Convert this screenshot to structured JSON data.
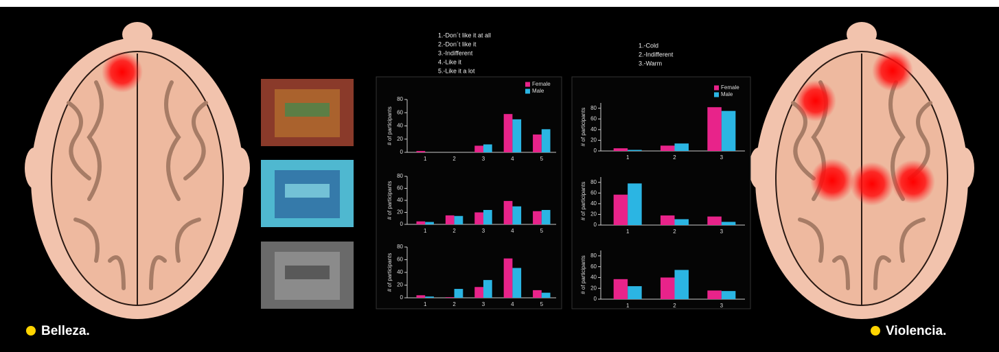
{
  "chart_data": [
    {
      "type": "bar",
      "ylabel": "# of participants",
      "categories": [
        "1",
        "2",
        "3",
        "4",
        "5"
      ],
      "series": [
        {
          "name": "Female",
          "color": "#e8238a",
          "values": [
            2,
            0,
            10,
            58,
            27
          ]
        },
        {
          "name": "Male",
          "color": "#2bb5e3",
          "values": [
            0,
            0,
            12,
            50,
            35
          ]
        }
      ],
      "ylim": [
        0,
        80
      ],
      "yticks": [
        0,
        20,
        40,
        60,
        80
      ],
      "legend": "upper right"
    },
    {
      "type": "bar",
      "ylabel": "# of participants",
      "categories": [
        "1",
        "2",
        "3",
        "4",
        "5"
      ],
      "series": [
        {
          "name": "Female",
          "color": "#e8238a",
          "values": [
            5,
            15,
            20,
            39,
            22
          ]
        },
        {
          "name": "Male",
          "color": "#2bb5e3",
          "values": [
            4,
            14,
            24,
            30,
            24
          ]
        }
      ],
      "ylim": [
        0,
        80
      ],
      "yticks": [
        0,
        20,
        40,
        60,
        80
      ]
    },
    {
      "type": "bar",
      "ylabel": "# of participants",
      "categories": [
        "1",
        "2",
        "3",
        "4",
        "5"
      ],
      "series": [
        {
          "name": "Female",
          "color": "#e8238a",
          "values": [
            4,
            1,
            17,
            62,
            12
          ]
        },
        {
          "name": "Male",
          "color": "#2bb5e3",
          "values": [
            2,
            14,
            28,
            47,
            8
          ]
        }
      ],
      "ylim": [
        0,
        80
      ],
      "yticks": [
        0,
        20,
        40,
        60,
        80
      ]
    },
    {
      "type": "bar",
      "ylabel": "# of participants",
      "categories": [
        "1",
        "2",
        "3"
      ],
      "series": [
        {
          "name": "Female",
          "color": "#e8238a",
          "values": [
            5,
            10,
            82
          ]
        },
        {
          "name": "Male",
          "color": "#2bb5e3",
          "values": [
            2,
            14,
            75
          ]
        }
      ],
      "ylim": [
        0,
        90
      ],
      "yticks": [
        0,
        20,
        40,
        60,
        80
      ],
      "legend": "upper right"
    },
    {
      "type": "bar",
      "ylabel": "# of participants",
      "categories": [
        "1",
        "2",
        "3"
      ],
      "series": [
        {
          "name": "Female",
          "color": "#e8238a",
          "values": [
            57,
            18,
            16
          ]
        },
        {
          "name": "Male",
          "color": "#2bb5e3",
          "values": [
            78,
            11,
            6
          ]
        }
      ],
      "ylim": [
        0,
        90
      ],
      "yticks": [
        0,
        20,
        40,
        60,
        80
      ]
    },
    {
      "type": "bar",
      "ylabel": "# of participants",
      "categories": [
        "1",
        "2",
        "3"
      ],
      "series": [
        {
          "name": "Female",
          "color": "#e8238a",
          "values": [
            37,
            40,
            16
          ]
        },
        {
          "name": "Male",
          "color": "#2bb5e3",
          "values": [
            24,
            54,
            15
          ]
        }
      ],
      "ylim": [
        0,
        90
      ],
      "yticks": [
        0,
        20,
        40,
        60,
        80
      ]
    }
  ],
  "scale_notes": [
    [
      "1.-Don´t like it at all",
      "2.-Don´t like it",
      "3.-Indifferent",
      "4.-Like it",
      "5.-Like it a lot"
    ],
    [
      "1.-Cold",
      "2.-Indifferent",
      "3.-Warm"
    ]
  ],
  "labels": {
    "left": "Belleza.",
    "right": "Violencia."
  }
}
